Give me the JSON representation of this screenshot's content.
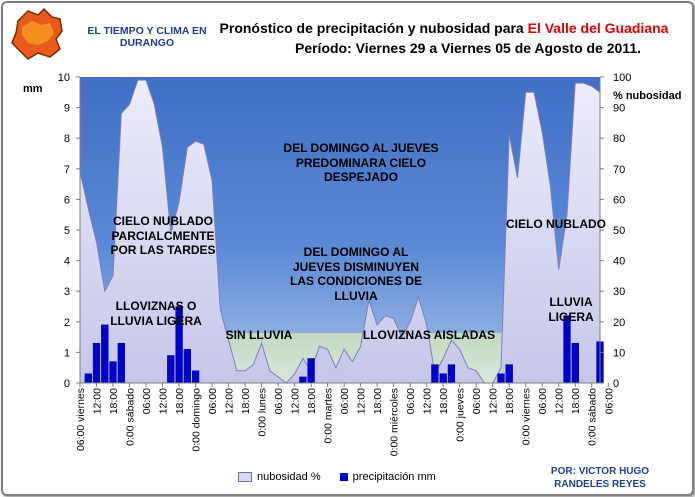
{
  "header": {
    "brand_line1": "EL TIEMPO Y CLIMA EN",
    "brand_line2": "DURANGO",
    "title_line1_prefix": "Pronóstico de precipitación y nubosidad para ",
    "title_line1_highlight": "El Valle del Guadiana",
    "title_line2": "Período: Viernes 29 a Viernes 05 de Agosto de 2011."
  },
  "author": {
    "line1": "POR:  VICTOR HUGO",
    "line2": "RANDELES   REYES"
  },
  "colors": {
    "plot_bg": "#4472c4",
    "area_fill": "#d9d9f3",
    "bar": "#0000cc",
    "header_blue": "#1f3f8f",
    "title_red": "#e00000",
    "logo": "#e85a1b"
  },
  "annotations": [
    {
      "lines": [
        "DEL DOMINGO AL JUEVES",
        "PREDOMINARA CIELO",
        "DESPEJADO"
      ]
    },
    {
      "lines": [
        "CIELO  NUBLADO",
        "PARCIALCMENTE",
        "POR LAS TARDES"
      ]
    },
    {
      "lines": [
        "DEL DOMINGO AL",
        "JUEVES DISMINUYEN",
        "LAS CONDICIONES DE",
        "LLUVIA"
      ]
    },
    {
      "lines": [
        "CIELO   NUBLADO"
      ]
    },
    {
      "lines": [
        "LLOVIZNAS O",
        "LLUVIA LIGERA"
      ]
    },
    {
      "lines": [
        "SIN LLUVIA"
      ]
    },
    {
      "lines": [
        "LLOVIZNAS AISLADAS"
      ]
    },
    {
      "lines": [
        "LLUVIA",
        "LIGERA"
      ]
    }
  ],
  "chart_data": {
    "type": "bar+area",
    "ylabel_left": "mm",
    "ylabel_right": "% nubosidad",
    "ylim_left": [
      0,
      10
    ],
    "ylim_right": [
      0,
      100
    ],
    "yticks_left": [
      "0",
      "1",
      "2",
      "3",
      "4",
      "5",
      "6",
      "7",
      "8",
      "9",
      "10"
    ],
    "yticks_right": [
      "0",
      "10",
      "20",
      "30",
      "40",
      "50",
      "60",
      "70",
      "80",
      "90",
      "100"
    ],
    "xtick_labels": [
      "06:00 viernes",
      "12:00",
      "18:00",
      "0:00 sábado",
      "06:00",
      "12:00",
      "18:00",
      "0:00 domingo",
      "06:00",
      "12:00",
      "18:00",
      "0:00 lunes",
      "06:00",
      "12:00",
      "18:00",
      "0:00 martes",
      "06:00",
      "12:00",
      "18:00",
      "0:00 miércoles",
      "06:00",
      "12:00",
      "18:00",
      "0:00 jueves",
      "06:00",
      "12:00",
      "18:00",
      "0:00 viernes",
      "06:00",
      "12:00",
      "18:00",
      "0:00 sábado",
      "06:00"
    ],
    "legend": [
      "nubosidad %",
      "precipitación mm"
    ],
    "legend_position": "bottom",
    "grid": false,
    "time_step_hours": 3,
    "series": [
      {
        "name": "nubosidad %",
        "type": "area",
        "axis": "right",
        "values": [
          69,
          57,
          46,
          30,
          35,
          88,
          91,
          99,
          99,
          91,
          77,
          49,
          59,
          77,
          79,
          78,
          66,
          24,
          14,
          4,
          4,
          6,
          13,
          4,
          2,
          0,
          3,
          8,
          4,
          12,
          11,
          5,
          11,
          7,
          12,
          27,
          19,
          22,
          21,
          15,
          20,
          28,
          19,
          3,
          8,
          14,
          11,
          5,
          4,
          0,
          0,
          5,
          81,
          67,
          95,
          95,
          82,
          64,
          37,
          55,
          98,
          98,
          97,
          95
        ]
      },
      {
        "name": "precipitación mm",
        "type": "bar",
        "axis": "left",
        "values": [
          0,
          0.3,
          1.3,
          1.9,
          0.7,
          1.3,
          0,
          0,
          0,
          0,
          0,
          0.9,
          2.5,
          1.1,
          0.4,
          0,
          0,
          0,
          0,
          0,
          0,
          0,
          0,
          0,
          0,
          0,
          0,
          0.2,
          0.8,
          0,
          0,
          0,
          0,
          0,
          0,
          0,
          0,
          0,
          0,
          0,
          0,
          0,
          0,
          0.6,
          0.3,
          0.6,
          0,
          0,
          0,
          0,
          0,
          0.3,
          0.6,
          0,
          0,
          0,
          0,
          0,
          0,
          2.2,
          1.3,
          0,
          0,
          1.35
        ]
      }
    ]
  }
}
